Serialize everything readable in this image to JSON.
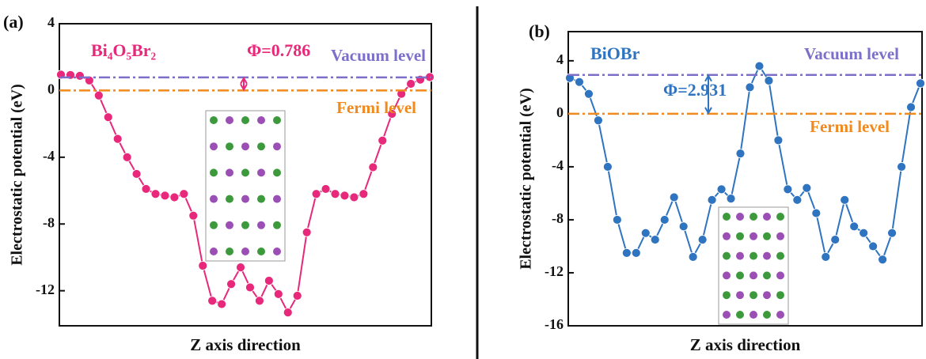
{
  "chart_data": [
    {
      "type": "line",
      "panel": "(a)",
      "title": "Bi₄O₅Br₂",
      "annotation": "Φ=0.786",
      "x_label": "Z axis direction",
      "y_label": "Electrostatic potential (eV)",
      "ylim": [
        -14.1,
        4
      ],
      "yticks": [
        -12,
        -8,
        -4,
        0,
        4
      ],
      "hlines": [
        {
          "label": "Vacuum level",
          "value": 0.786,
          "color": "#7b6fc9"
        },
        {
          "label": "Fermi level",
          "value": 0,
          "color": "#f08a1c"
        }
      ],
      "series": [
        {
          "name": "Bi₄O₅Br₂",
          "color": "#e8287a",
          "values": [
            0.95,
            0.93,
            0.88,
            0.6,
            -0.3,
            -1.6,
            -2.9,
            -4.0,
            -5.0,
            -5.9,
            -6.2,
            -6.3,
            -6.4,
            -6.2,
            -7.5,
            -10.5,
            -12.6,
            -12.8,
            -11.6,
            -10.6,
            -11.8,
            -12.6,
            -11.4,
            -12.2,
            -13.3,
            -12.3,
            -8.5,
            -6.2,
            -5.9,
            -6.2,
            -6.3,
            -6.4,
            -6.2,
            -4.6,
            -3.0,
            -1.4,
            -0.2,
            0.4,
            0.65,
            0.8
          ]
        }
      ]
    },
    {
      "type": "line",
      "panel": "(b)",
      "title": "BiOBr",
      "annotation": "Φ=2.931",
      "x_label": "Z axis direction",
      "y_label": "Electrostatic potential (eV)",
      "ylim": [
        -16,
        6.2
      ],
      "yticks": [
        -16,
        -12,
        -8,
        -4,
        0,
        4
      ],
      "hlines": [
        {
          "label": "Vacuum level",
          "value": 2.931,
          "color": "#7b6fc9"
        },
        {
          "label": "Fermi level",
          "value": 0,
          "color": "#f08a1c"
        }
      ],
      "series": [
        {
          "name": "BiOBr",
          "color": "#2f74c0",
          "values": [
            2.7,
            2.4,
            1.5,
            -0.5,
            -4,
            -8,
            -10.5,
            -10.5,
            -9.0,
            -9.5,
            -8,
            -6.3,
            -8.5,
            -10.8,
            -9.5,
            -6.5,
            -5.7,
            -6.4,
            -3,
            2,
            3.6,
            2.5,
            -2,
            -5.7,
            -6.5,
            -5.6,
            -7.5,
            -10.8,
            -9.5,
            -6.5,
            -8.5,
            -9,
            -10,
            -11,
            -9,
            -4,
            0.5,
            2.3
          ]
        }
      ]
    }
  ]
}
